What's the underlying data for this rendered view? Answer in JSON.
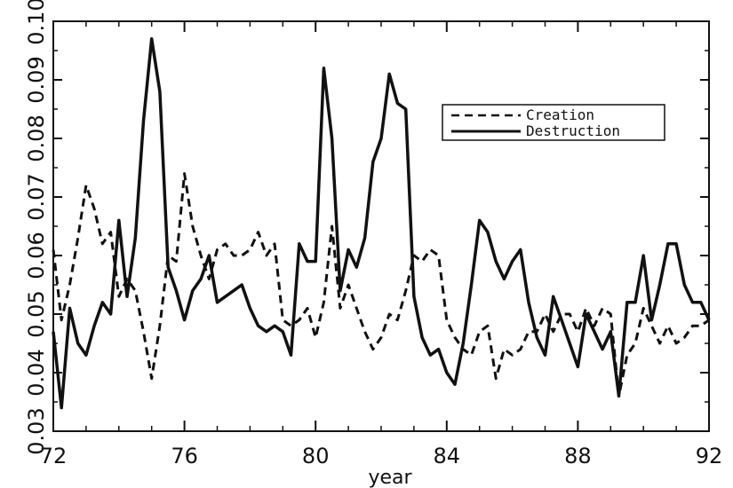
{
  "chart_data": {
    "type": "line",
    "title": "",
    "xlabel": "year",
    "ylabel": "",
    "xlim": [
      72,
      92
    ],
    "ylim": [
      0.03,
      0.1
    ],
    "x_ticks": [
      72,
      76,
      80,
      84,
      88,
      92
    ],
    "x_tick_labels": [
      "72",
      "76",
      "80",
      "84",
      "88",
      "92"
    ],
    "y_ticks": [
      0.03,
      0.04,
      0.05,
      0.06,
      0.07,
      0.08,
      0.09,
      0.1
    ],
    "y_tick_labels": [
      "0.03",
      "0.04",
      "0.05",
      "0.06",
      "0.07",
      "0.08",
      "0.09",
      "0.10"
    ],
    "grid": false,
    "legend_position": "top-right",
    "series": [
      {
        "name": "Creation",
        "style": "dashed",
        "color": "#111111",
        "x": [
          72.0,
          72.25,
          72.5,
          72.75,
          73.0,
          73.25,
          73.5,
          73.75,
          74.0,
          74.25,
          74.5,
          74.75,
          75.0,
          75.25,
          75.5,
          75.75,
          76.0,
          76.25,
          76.5,
          76.75,
          77.0,
          77.25,
          77.5,
          77.75,
          78.0,
          78.25,
          78.5,
          78.75,
          79.0,
          79.25,
          79.5,
          79.75,
          80.0,
          80.25,
          80.5,
          80.75,
          81.0,
          81.25,
          81.5,
          81.75,
          82.0,
          82.25,
          82.5,
          82.75,
          83.0,
          83.25,
          83.5,
          83.75,
          84.0,
          84.25,
          84.5,
          84.75,
          85.0,
          85.25,
          85.5,
          85.75,
          86.0,
          86.25,
          86.5,
          86.75,
          87.0,
          87.25,
          87.5,
          87.75,
          88.0,
          88.25,
          88.5,
          88.75,
          89.0,
          89.25,
          89.5,
          89.75,
          90.0,
          90.25,
          90.5,
          90.75,
          91.0,
          91.25,
          91.5,
          91.75,
          92.0
        ],
        "y": [
          0.061,
          0.049,
          0.055,
          0.063,
          0.072,
          0.068,
          0.062,
          0.064,
          0.053,
          0.056,
          0.054,
          0.047,
          0.039,
          0.048,
          0.06,
          0.059,
          0.074,
          0.065,
          0.06,
          0.056,
          0.061,
          0.062,
          0.06,
          0.06,
          0.061,
          0.064,
          0.06,
          0.062,
          0.049,
          0.048,
          0.049,
          0.051,
          0.046,
          0.052,
          0.065,
          0.051,
          0.055,
          0.051,
          0.047,
          0.044,
          0.046,
          0.05,
          0.049,
          0.054,
          0.06,
          0.059,
          0.061,
          0.06,
          0.049,
          0.046,
          0.044,
          0.043,
          0.047,
          0.048,
          0.039,
          0.044,
          0.043,
          0.044,
          0.047,
          0.047,
          0.05,
          0.047,
          0.05,
          0.05,
          0.047,
          0.051,
          0.048,
          0.051,
          0.05,
          0.036,
          0.043,
          0.045,
          0.051,
          0.048,
          0.045,
          0.048,
          0.045,
          0.046,
          0.048,
          0.048,
          0.049
        ]
      },
      {
        "name": "Destruction",
        "style": "solid",
        "color": "#111111",
        "x": [
          72.0,
          72.25,
          72.5,
          72.75,
          73.0,
          73.25,
          73.5,
          73.75,
          74.0,
          74.25,
          74.5,
          74.75,
          75.0,
          75.25,
          75.5,
          75.75,
          76.0,
          76.25,
          76.5,
          76.75,
          77.0,
          77.25,
          77.5,
          77.75,
          78.0,
          78.25,
          78.5,
          78.75,
          79.0,
          79.25,
          79.5,
          79.75,
          80.0,
          80.25,
          80.5,
          80.75,
          81.0,
          81.25,
          81.5,
          81.75,
          82.0,
          82.25,
          82.5,
          82.75,
          83.0,
          83.25,
          83.5,
          83.75,
          84.0,
          84.25,
          84.5,
          84.75,
          85.0,
          85.25,
          85.5,
          85.75,
          86.0,
          86.25,
          86.5,
          86.75,
          87.0,
          87.25,
          87.5,
          87.75,
          88.0,
          88.25,
          88.5,
          88.75,
          89.0,
          89.25,
          89.5,
          89.75,
          90.0,
          90.25,
          90.5,
          90.75,
          91.0,
          91.25,
          91.5,
          91.75,
          92.0
        ],
        "y": [
          0.047,
          0.034,
          0.051,
          0.045,
          0.043,
          0.048,
          0.052,
          0.05,
          0.066,
          0.053,
          0.063,
          0.083,
          0.097,
          0.088,
          0.058,
          0.054,
          0.049,
          0.054,
          0.056,
          0.06,
          0.052,
          0.053,
          0.054,
          0.055,
          0.051,
          0.048,
          0.047,
          0.048,
          0.047,
          0.043,
          0.062,
          0.059,
          0.059,
          0.092,
          0.08,
          0.054,
          0.061,
          0.058,
          0.063,
          0.076,
          0.08,
          0.091,
          0.086,
          0.085,
          0.053,
          0.046,
          0.043,
          0.044,
          0.04,
          0.038,
          0.045,
          0.055,
          0.066,
          0.064,
          0.059,
          0.056,
          0.059,
          0.061,
          0.052,
          0.046,
          0.043,
          0.053,
          0.049,
          0.045,
          0.041,
          0.05,
          0.047,
          0.044,
          0.047,
          0.036,
          0.052,
          0.052,
          0.06,
          0.049,
          0.055,
          0.062,
          0.062,
          0.055,
          0.052,
          0.052,
          0.049
        ]
      }
    ]
  }
}
